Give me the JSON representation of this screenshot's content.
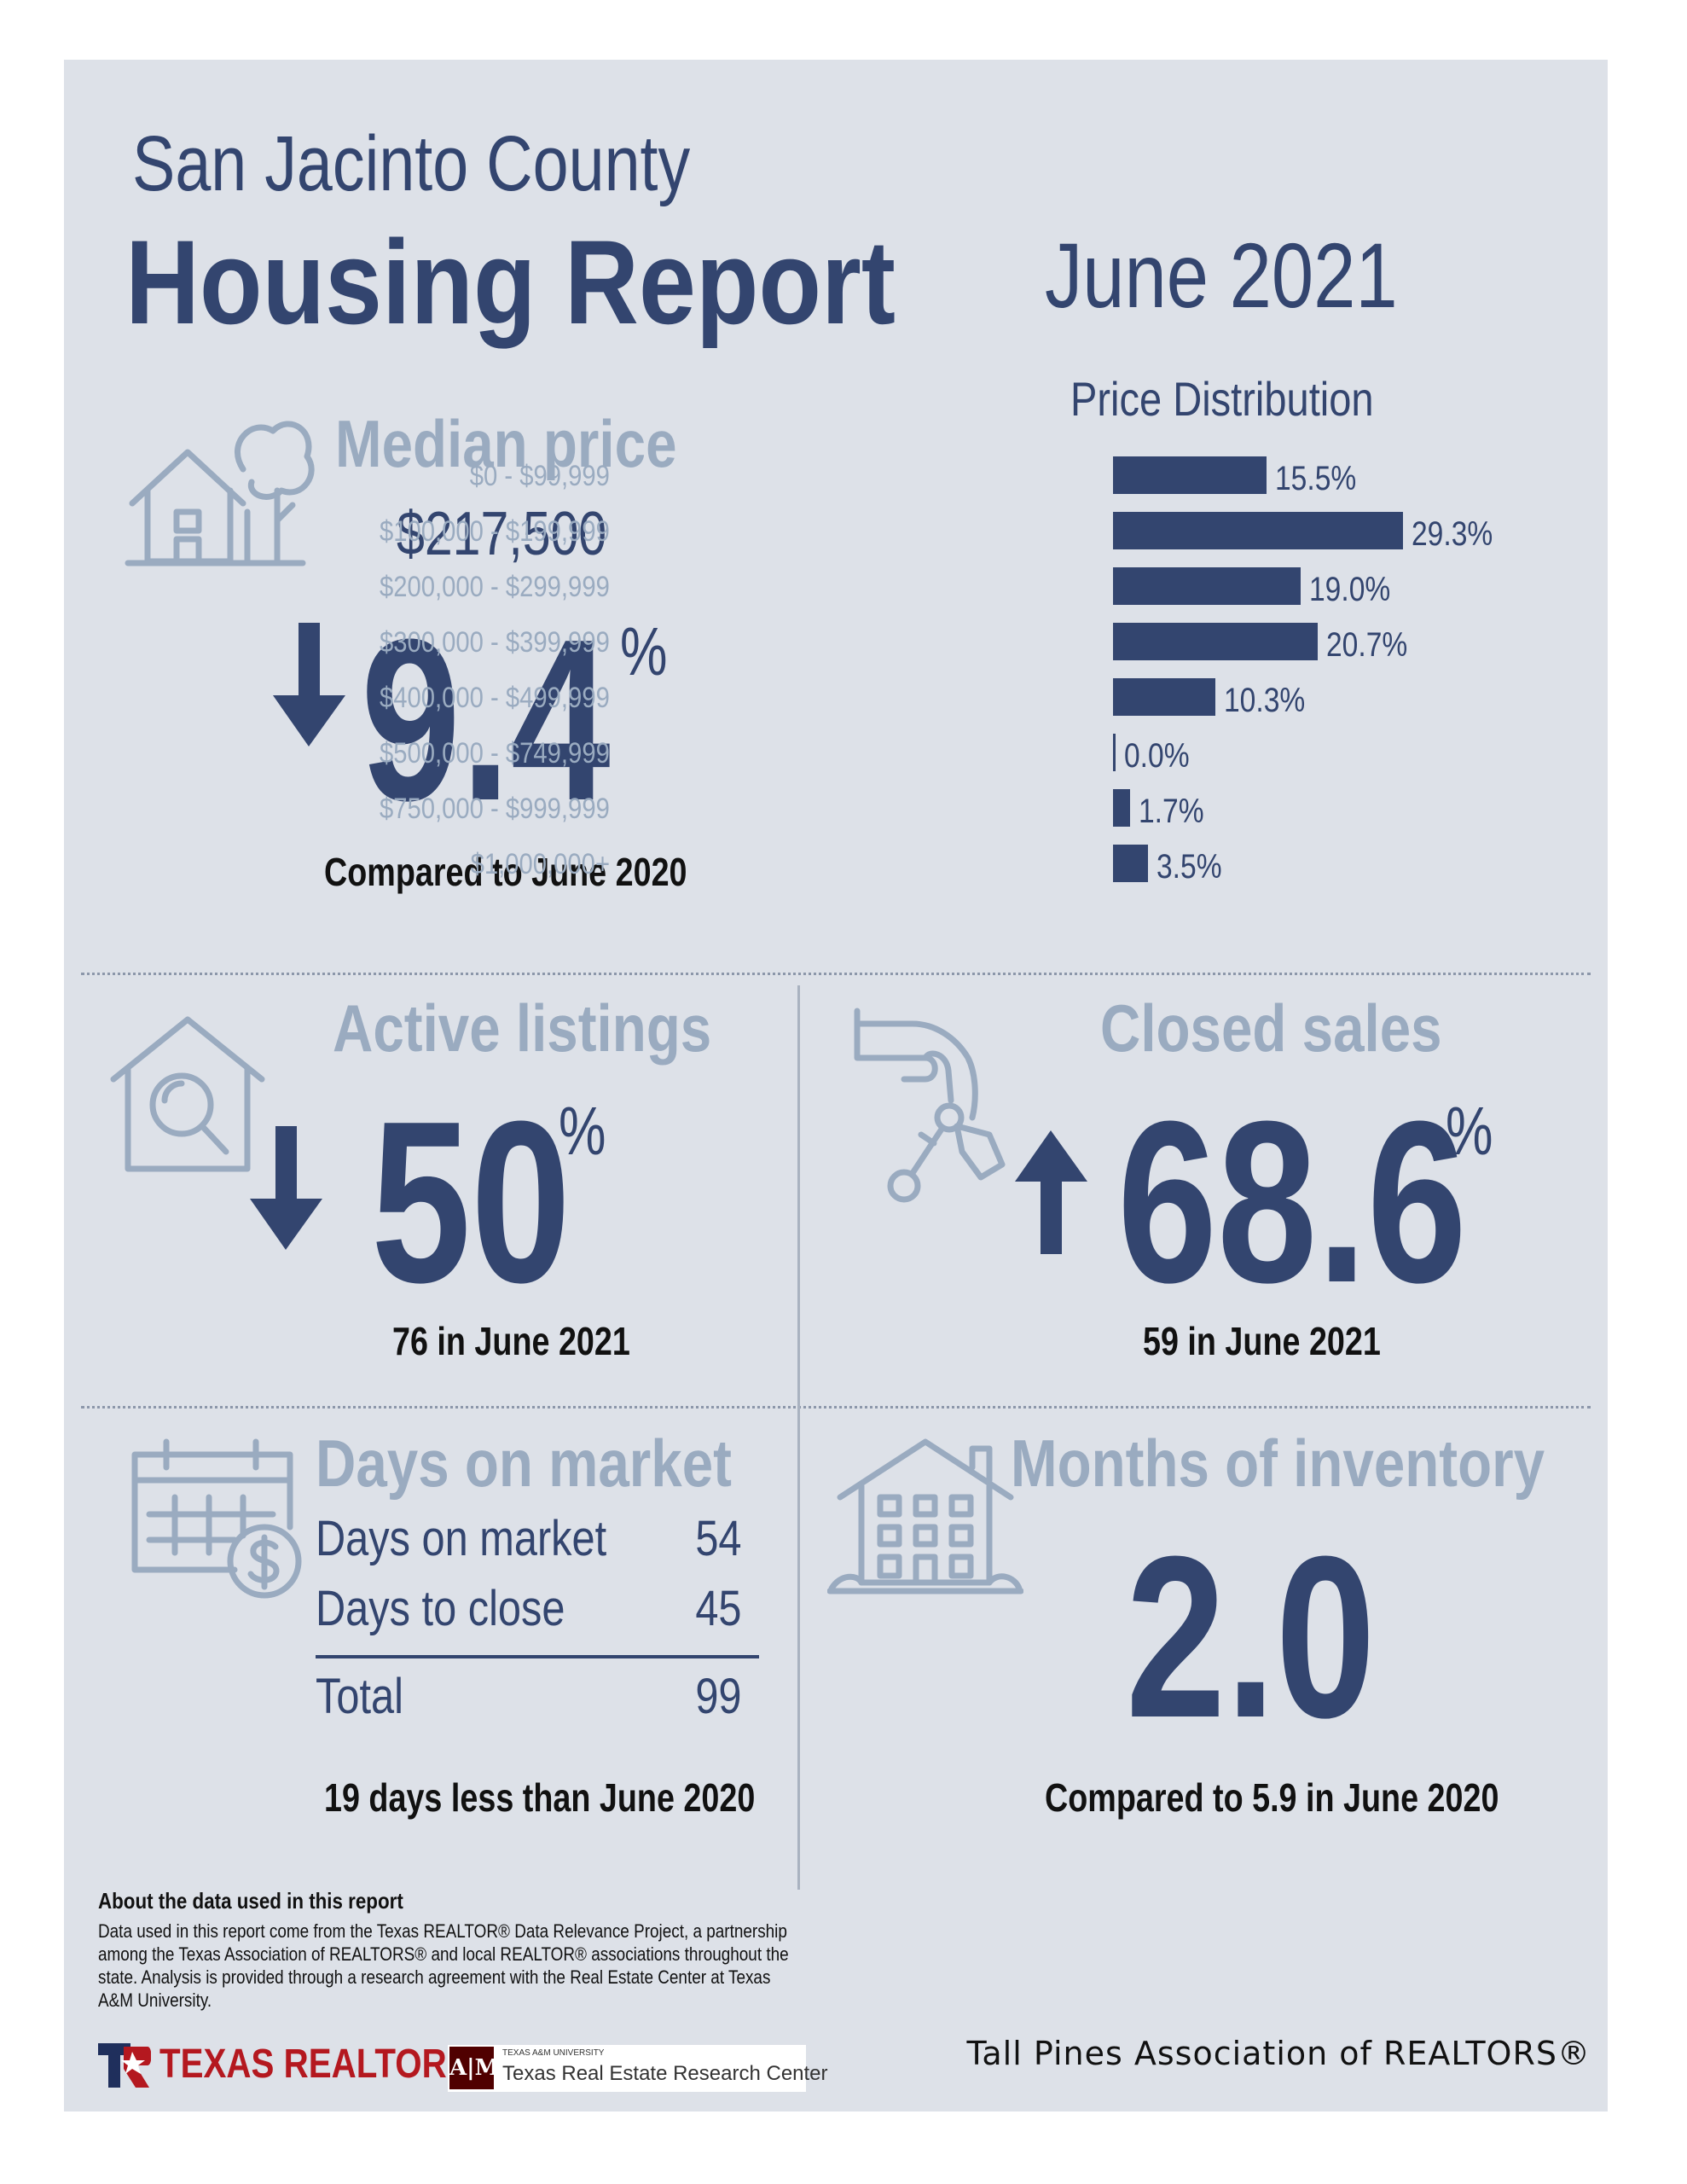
{
  "header": {
    "county": "San Jacinto County",
    "title": "Housing Report",
    "month": "June 2021"
  },
  "median_price": {
    "heading": "Median price",
    "value": "$217,500",
    "change": "9.4",
    "change_unit": "%",
    "direction": "down",
    "comparison": "Compared to June 2020"
  },
  "price_distribution": {
    "title": "Price Distribution",
    "rows": [
      {
        "label": "$0 - $99,999",
        "pct_label": "15.5%",
        "pct": 15.5
      },
      {
        "label": "$100,000 - $199,999",
        "pct_label": "29.3%",
        "pct": 29.3
      },
      {
        "label": "$200,000 - $299,999",
        "pct_label": "19.0%",
        "pct": 19.0
      },
      {
        "label": "$300,000 - $399,999",
        "pct_label": "20.7%",
        "pct": 20.7
      },
      {
        "label": "$400,000 - $499,999",
        "pct_label": "10.3%",
        "pct": 10.3
      },
      {
        "label": "$500,000 - $749,999",
        "pct_label": "0.0%",
        "pct": 0.0
      },
      {
        "label": "$750,000 - $999,999",
        "pct_label": "1.7%",
        "pct": 1.7
      },
      {
        "label": "$1,000,000+",
        "pct_label": "3.5%",
        "pct": 3.5
      }
    ]
  },
  "active_listings": {
    "heading": "Active listings",
    "change": "50",
    "change_unit": "%",
    "direction": "down",
    "note": "76 in June 2021"
  },
  "closed_sales": {
    "heading": "Closed sales",
    "change": "68.6",
    "change_unit": "%",
    "direction": "up",
    "note": "59 in June 2021"
  },
  "days_on_market": {
    "heading": "Days on market",
    "rows": [
      {
        "label": "Days on market",
        "value": "54"
      },
      {
        "label": "Days to close",
        "value": "45"
      }
    ],
    "total_label": "Total",
    "total_value": "99",
    "note": "19 days less than June 2020"
  },
  "months_inventory": {
    "heading": "Months of inventory",
    "value": "2.0",
    "note": "Compared to 5.9 in June 2020"
  },
  "about": {
    "title": "About the data used in this report",
    "body": "Data used in this report come from the Texas REALTOR® Data Relevance Project, a partnership among the Texas Association of REALTORS® and local REALTOR® associations throughout the state. Analysis is provided through a research agreement with the Real Estate Center at Texas A&M University."
  },
  "footer": {
    "texas_realtors": "TEXAS REALTORS",
    "tamu_small": "TEXAS A&M UNIVERSITY",
    "tamu_name": "Texas Real Estate Research Center",
    "tamu_mark": "A|M",
    "association": "Tall Pines Association of REALTORS®"
  },
  "colors": {
    "navy": "#33456f",
    "pale": "#9aabc0",
    "background": "#dde1e8",
    "brand_red": "#b4181f",
    "aggie_maroon": "#500000"
  },
  "icons": [
    "house-tree-icon",
    "arrow-down-icon",
    "house-search-icon",
    "hand-keys-icon",
    "arrow-up-icon",
    "calendar-dollar-icon",
    "building-icon"
  ]
}
